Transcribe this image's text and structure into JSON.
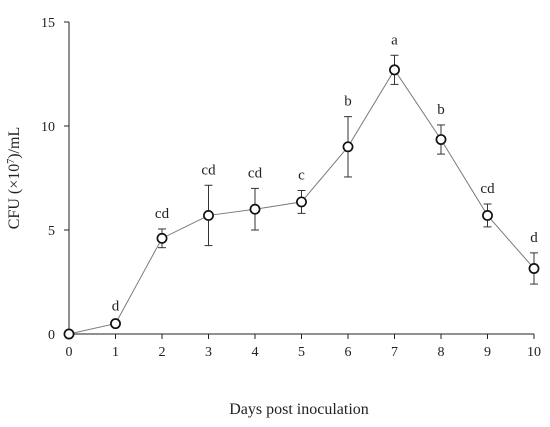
{
  "chart_data": {
    "type": "line",
    "title": "",
    "xlabel": "Days post inoculation",
    "ylabel_prefix": "CFU (×10",
    "ylabel_exp": "7",
    "ylabel_suffix": ")/mL",
    "xlim": [
      0,
      10
    ],
    "ylim": [
      0,
      15
    ],
    "x_ticks": [
      0,
      1,
      2,
      3,
      4,
      5,
      6,
      7,
      8,
      9,
      10
    ],
    "y_ticks": [
      0,
      5,
      10,
      15
    ],
    "grid": false,
    "marker": "open-circle",
    "line_color": "#7a7a7a",
    "marker_color": "#111111",
    "series": [
      {
        "x": [
          0,
          1,
          2,
          3,
          4,
          5,
          6,
          7,
          8,
          9,
          10
        ],
        "y": [
          0,
          0.5,
          4.6,
          5.7,
          6.0,
          6.35,
          9.0,
          12.7,
          9.35,
          5.7,
          3.15
        ],
        "error": [
          0,
          0.1,
          0.45,
          1.45,
          1.0,
          0.55,
          1.45,
          0.7,
          0.7,
          0.55,
          0.75
        ],
        "labels": [
          "",
          "d",
          "cd",
          "cd",
          "cd",
          "c",
          "b",
          "a",
          "b",
          "cd",
          "d"
        ]
      }
    ]
  }
}
